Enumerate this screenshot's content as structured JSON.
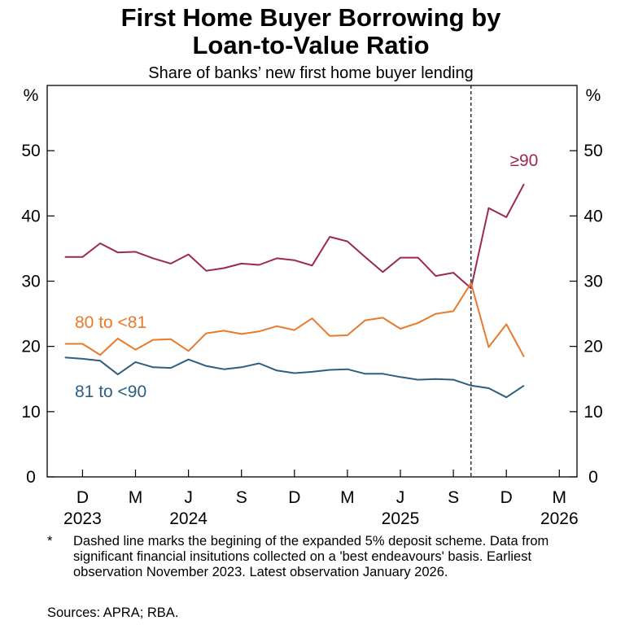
{
  "chart_data": {
    "type": "line",
    "title_lines": [
      "First Home Buyer Borrowing by",
      "Loan-to-Value Ratio"
    ],
    "subtitle": "Share of banks’ new first home buyer lending",
    "y_unit_label": "%",
    "ylim": [
      0,
      60
    ],
    "y_ticks": [
      0,
      10,
      20,
      30,
      40,
      50
    ],
    "x_month_ticks": [
      {
        "label": "D",
        "month": "2023-12"
      },
      {
        "label": "M",
        "month": "2024-03"
      },
      {
        "label": "J",
        "month": "2024-06"
      },
      {
        "label": "S",
        "month": "2024-09"
      },
      {
        "label": "D",
        "month": "2024-12"
      },
      {
        "label": "M",
        "month": "2025-03"
      },
      {
        "label": "J",
        "month": "2025-06"
      },
      {
        "label": "S",
        "month": "2025-09"
      },
      {
        "label": "D",
        "month": "2025-12"
      },
      {
        "label": "M",
        "month": "2026-03"
      }
    ],
    "x_year_labels": [
      {
        "label": "2023",
        "month": "2023-12"
      },
      {
        "label": "2024",
        "month": "2024-06"
      },
      {
        "label": "2025",
        "month": "2025-06"
      },
      {
        "label": "2026",
        "month": "2026-03"
      }
    ],
    "x_range": [
      "2023-10",
      "2026-04"
    ],
    "x": [
      "2023-11",
      "2023-12",
      "2024-01",
      "2024-02",
      "2024-03",
      "2024-04",
      "2024-05",
      "2024-06",
      "2024-07",
      "2024-08",
      "2024-09",
      "2024-10",
      "2024-11",
      "2024-12",
      "2025-01",
      "2025-02",
      "2025-03",
      "2025-04",
      "2025-05",
      "2025-06",
      "2025-07",
      "2025-08",
      "2025-09",
      "2025-10",
      "2025-11",
      "2025-12",
      "2026-01"
    ],
    "series": [
      {
        "name": "≥90",
        "color": "#9c2a4f",
        "values": [
          33.7,
          33.7,
          35.8,
          34.4,
          34.5,
          33.5,
          32.7,
          34.1,
          31.6,
          32.0,
          32.7,
          32.5,
          33.5,
          33.2,
          32.4,
          36.8,
          36.1,
          33.7,
          31.4,
          33.6,
          33.6,
          30.8,
          31.3,
          28.9,
          41.2,
          39.8,
          44.9
        ]
      },
      {
        "name": "80 to <81",
        "color": "#e87a2c",
        "values": [
          20.4,
          20.4,
          18.7,
          21.2,
          19.5,
          21.0,
          21.1,
          19.3,
          22.0,
          22.4,
          21.9,
          22.3,
          23.1,
          22.5,
          24.3,
          21.6,
          21.7,
          24.0,
          24.4,
          22.7,
          23.6,
          25.0,
          25.4,
          29.7,
          19.9,
          23.4,
          18.4
        ]
      },
      {
        "name": "81 to <90",
        "color": "#2c5f82",
        "values": [
          18.3,
          18.1,
          17.8,
          15.7,
          17.6,
          16.8,
          16.7,
          18.0,
          17.0,
          16.5,
          16.8,
          17.4,
          16.3,
          15.9,
          16.1,
          16.4,
          16.5,
          15.8,
          15.8,
          15.3,
          14.9,
          15.0,
          14.9,
          14.0,
          13.6,
          12.2,
          14.0
        ]
      }
    ],
    "series_label_positions": [
      "right-end",
      "left",
      "left"
    ],
    "event_line": {
      "month": "2025-10",
      "style": "dashed"
    },
    "grid": false
  },
  "footnote": {
    "mark": "*",
    "text": "Dashed line marks the begining of the expanded 5% deposit scheme. Data from significant financial insitutions collected on a 'best endeavours' basis. Earliest observation November 2023. Latest observation January 2026."
  },
  "sources": "Sources:  APRA; RBA."
}
